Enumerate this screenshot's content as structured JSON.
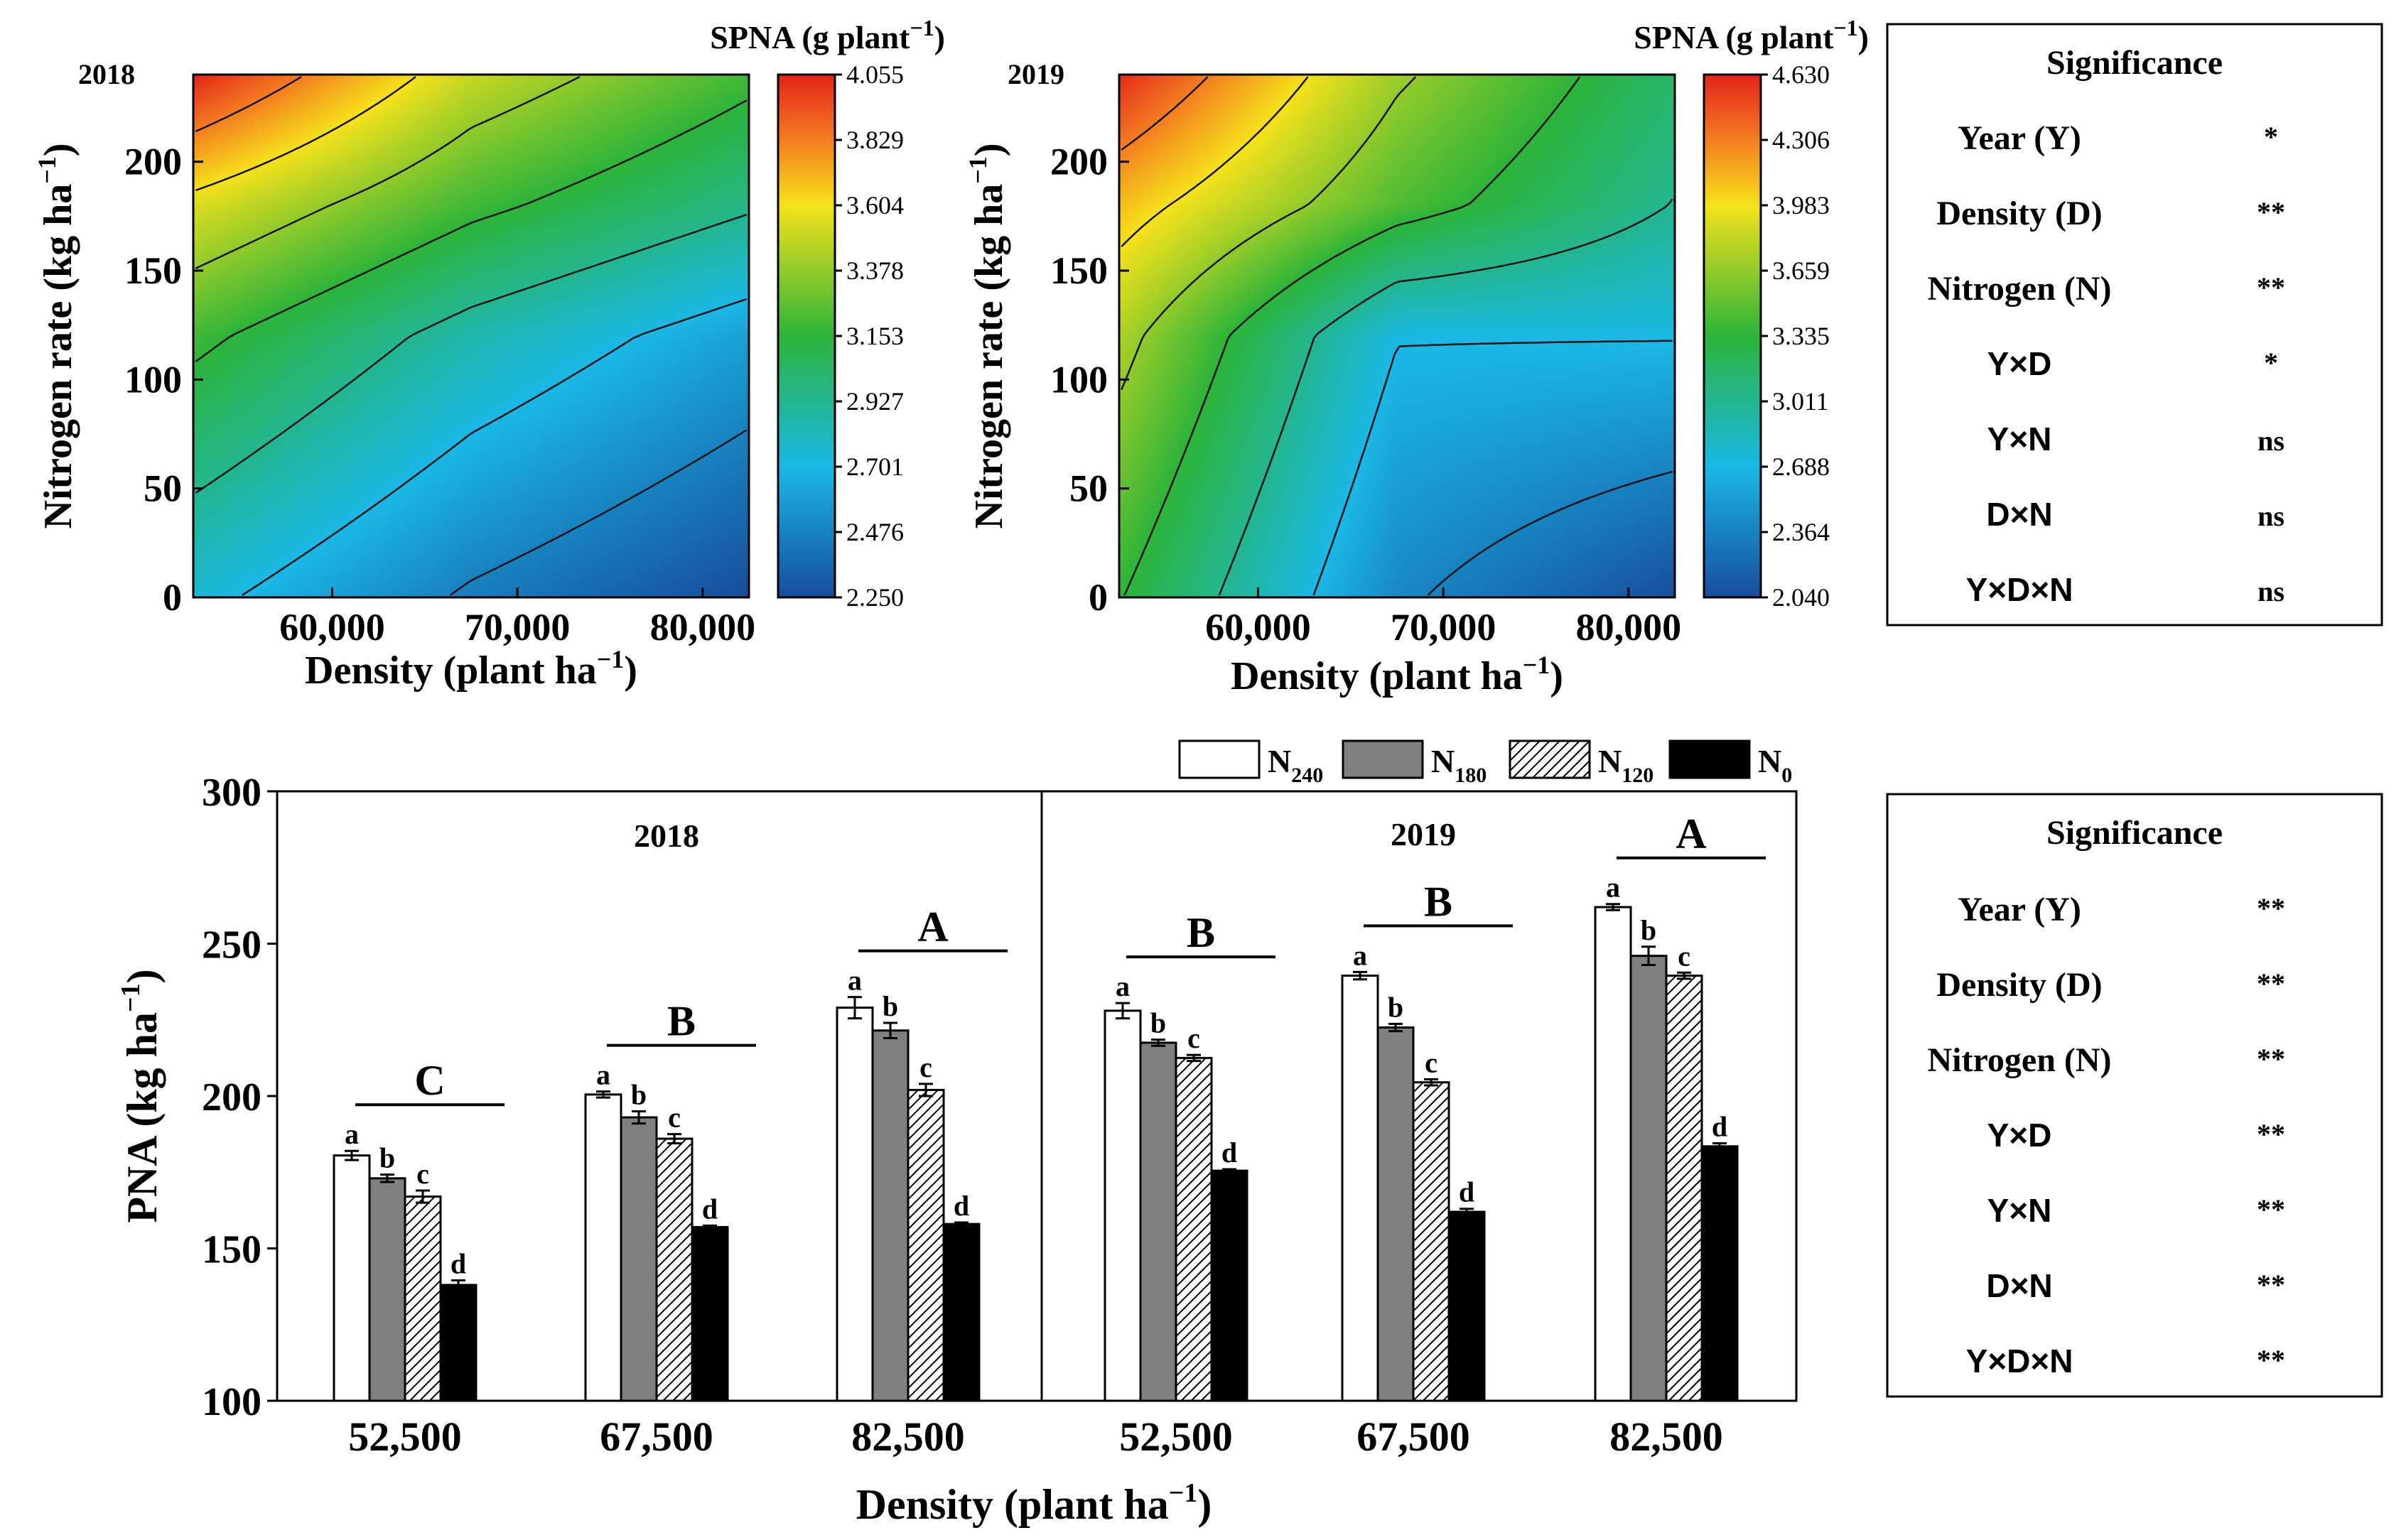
{
  "chart_data": [
    {
      "type": "contour",
      "name": "spna-2018",
      "panel_label": "2018",
      "colorbar_title": "SPNA (g plant⁻¹)",
      "xlabel": "Density (plant ha⁻¹)",
      "ylabel": "Nitrogen rate (kg ha⁻¹)",
      "xlim": [
        52500,
        82500
      ],
      "ylim": [
        0,
        240
      ],
      "x_ticks": [
        60000,
        70000,
        80000
      ],
      "x_tick_labels": [
        "60,000",
        "70,000",
        "80,000"
      ],
      "y_ticks": [
        0,
        50,
        100,
        150,
        200
      ],
      "y_tick_labels": [
        "0",
        "50",
        "100",
        "150",
        "200"
      ],
      "zlim": [
        2.25,
        4.055
      ],
      "colorbar_ticks": [
        "4.055",
        "3.829",
        "3.604",
        "3.378",
        "3.153",
        "2.927",
        "2.701",
        "2.476",
        "2.250"
      ],
      "grid_x": [
        52500,
        67500,
        82500
      ],
      "grid_y": [
        0,
        120,
        180,
        240
      ],
      "grid_z": [
        [
          2.75,
          2.45,
          2.25
        ],
        [
          3.2,
          2.85,
          2.6
        ],
        [
          3.55,
          3.2,
          2.95
        ],
        [
          4.05,
          3.5,
          3.2
        ]
      ]
    },
    {
      "type": "contour",
      "name": "spna-2019",
      "panel_label": "2019",
      "colorbar_title": "SPNA (g plant⁻¹)",
      "xlabel": "Density (plant ha⁻¹)",
      "ylabel": "Nitrogen rate (kg ha⁻¹)",
      "xlim": [
        52500,
        82500
      ],
      "ylim": [
        0,
        240
      ],
      "x_ticks": [
        60000,
        70000,
        80000
      ],
      "x_tick_labels": [
        "60,000",
        "70,000",
        "80,000"
      ],
      "y_ticks": [
        0,
        50,
        100,
        150,
        200
      ],
      "y_tick_labels": [
        "0",
        "50",
        "100",
        "150",
        "200"
      ],
      "zlim": [
        2.04,
        4.63
      ],
      "colorbar_ticks": [
        "4.630",
        "4.306",
        "3.983",
        "3.659",
        "3.335",
        "3.011",
        "2.688",
        "2.364",
        "2.040"
      ],
      "grid_x": [
        52500,
        67500,
        82500
      ],
      "grid_y": [
        0,
        120,
        180,
        240
      ],
      "grid_z": [
        [
          3.35,
          2.4,
          2.05
        ],
        [
          3.75,
          2.7,
          2.7
        ],
        [
          4.1,
          3.45,
          3.0
        ],
        [
          4.6,
          3.7,
          3.15
        ]
      ]
    },
    {
      "type": "bar",
      "name": "pna-grouped-bars",
      "ylabel": "PNA (kg ha⁻¹)",
      "xlabel": "Density (plant ha⁻¹)",
      "ylim": [
        100,
        300
      ],
      "y_ticks": [
        "100",
        "150",
        "200",
        "250",
        "300"
      ],
      "panels": [
        "2018",
        "2019"
      ],
      "categories": [
        "52,500",
        "67,500",
        "82,500",
        "52,500",
        "67,500",
        "82,500"
      ],
      "legend": [
        "N",
        "N",
        "N",
        "N"
      ],
      "legend_subscripts": [
        "240",
        "180",
        "120",
        "0"
      ],
      "series": [
        {
          "name": "N240",
          "values": [
            180.5,
            200.5,
            229,
            228,
            239.5,
            262
          ],
          "errors": [
            1.5,
            1.0,
            3.5,
            2.5,
            1.2,
            1.0
          ],
          "letters": [
            "a",
            "a",
            "a",
            "a",
            "a",
            "a"
          ]
        },
        {
          "name": "N180",
          "values": [
            173,
            193,
            221.5,
            217.5,
            222.5,
            246
          ],
          "errors": [
            1.2,
            2.0,
            2.5,
            1.0,
            1.2,
            3.0
          ],
          "letters": [
            "b",
            "b",
            "b",
            "b",
            "b",
            "b"
          ]
        },
        {
          "name": "N120",
          "values": [
            167,
            186,
            202,
            212.5,
            204.5,
            239.5
          ],
          "errors": [
            2.0,
            1.5,
            2.0,
            1.0,
            1.0,
            1.0
          ],
          "letters": [
            "c",
            "c",
            "c",
            "c",
            "c",
            "c"
          ]
        },
        {
          "name": "N0",
          "values": [
            138,
            157,
            158,
            175.5,
            162,
            183.5
          ],
          "errors": [
            1.5,
            0.5,
            0.5,
            0.5,
            1.0,
            1.0
          ],
          "letters": [
            "d",
            "d",
            "d",
            "d",
            "d",
            "d"
          ]
        }
      ],
      "group_letters": [
        "C",
        "B",
        "A",
        "B",
        "B",
        "A"
      ]
    }
  ],
  "significance_top": {
    "title": "Significance",
    "rows": [
      {
        "factor": "Year (Y)",
        "value": "*"
      },
      {
        "factor": "Density (D)",
        "value": "**"
      },
      {
        "factor": "Nitrogen (N)",
        "value": "**"
      },
      {
        "factor": "Y×D",
        "value": "*"
      },
      {
        "factor": "Y×N",
        "value": "ns"
      },
      {
        "factor": "D×N",
        "value": "ns"
      },
      {
        "factor": "Y×D×N",
        "value": "ns"
      }
    ]
  },
  "significance_bottom": {
    "title": "Significance",
    "rows": [
      {
        "factor": "Year (Y)",
        "value": "**"
      },
      {
        "factor": "Density (D)",
        "value": "**"
      },
      {
        "factor": "Nitrogen (N)",
        "value": "**"
      },
      {
        "factor": "Y×D",
        "value": "**"
      },
      {
        "factor": "Y×N",
        "value": "**"
      },
      {
        "factor": "D×N",
        "value": "**"
      },
      {
        "factor": "Y×D×N",
        "value": "**"
      }
    ]
  }
}
